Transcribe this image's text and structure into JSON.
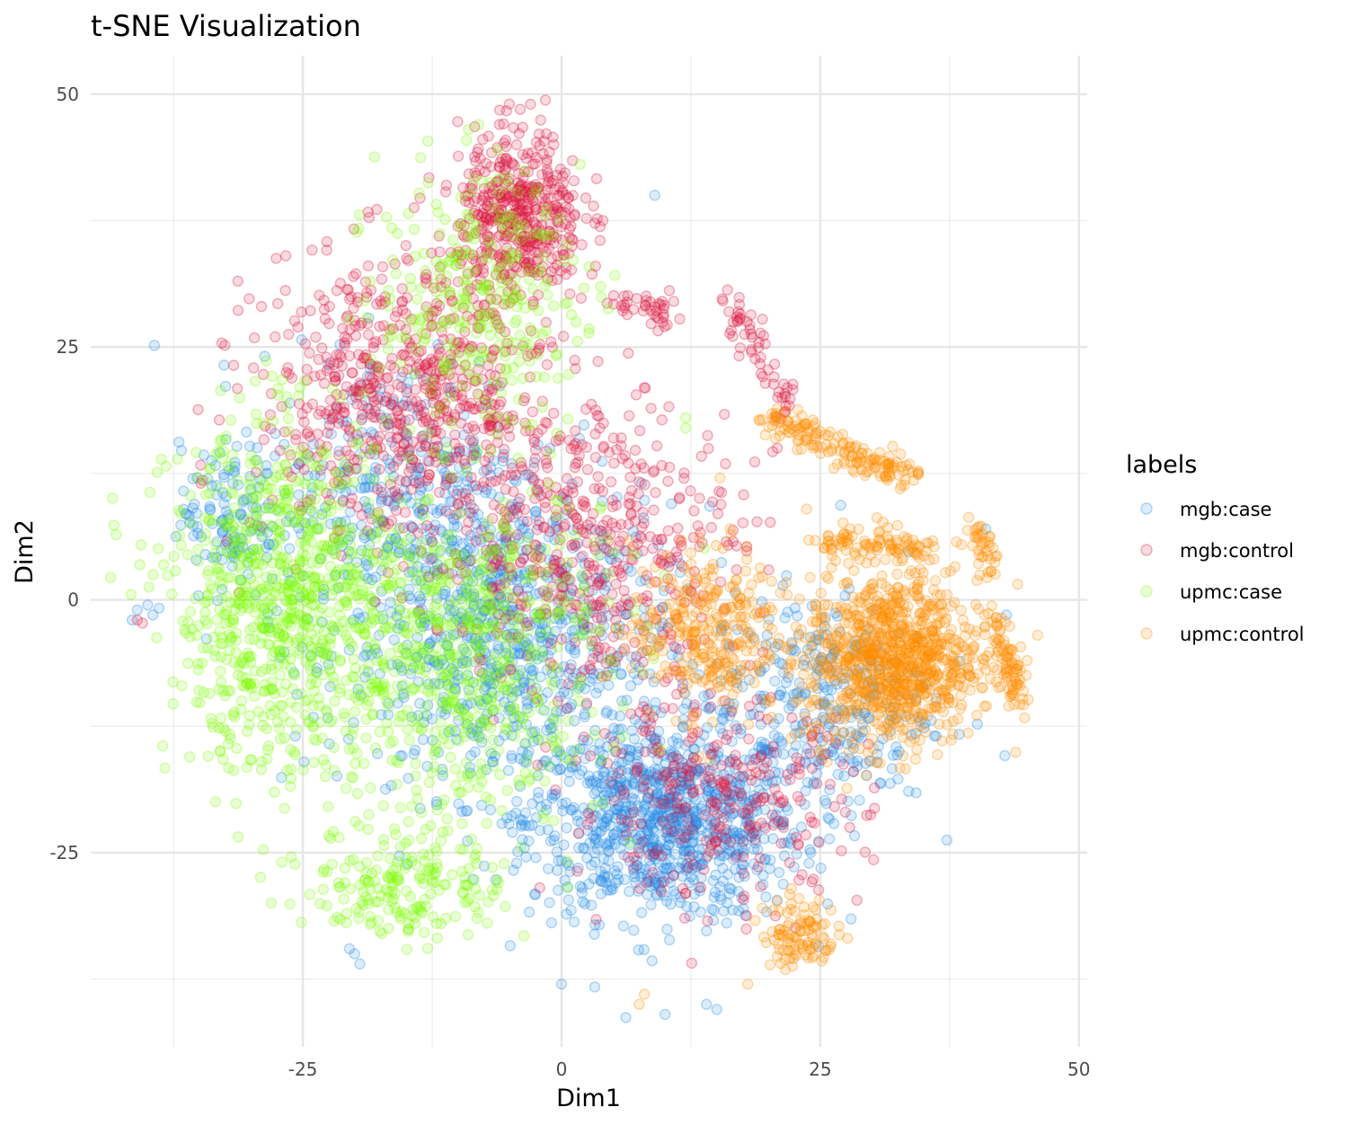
{
  "chart_data": {
    "type": "scatter",
    "title": "t-SNE Visualization",
    "xlabel": "Dim1",
    "ylabel": "Dim2",
    "xlim": [
      -45.5,
      50.8
    ],
    "ylim": [
      -44.2,
      53.8
    ],
    "x_ticks": [
      -25,
      0,
      25,
      50
    ],
    "y_ticks": [
      50,
      25,
      0,
      -25
    ],
    "x_tick_labels": [
      "-25",
      "0",
      "25",
      "50"
    ],
    "y_tick_labels": [
      "50",
      "25",
      "0",
      "-25"
    ],
    "grid": true,
    "legend": {
      "title": "labels",
      "placement": "right",
      "entries": [
        "mgb:case",
        "mgb:control",
        "upmc:case",
        "upmc:control"
      ]
    },
    "series": [
      {
        "name": "mgb:case",
        "color": "#1E88E5",
        "clusters": [
          {
            "x": 10,
            "y": -22,
            "sx": 11,
            "sy": 8,
            "n": 900
          },
          {
            "x": -5,
            "y": -5,
            "sx": 13,
            "sy": 12,
            "n": 700
          },
          {
            "x": -15,
            "y": 10,
            "sx": 12,
            "sy": 12,
            "n": 400
          },
          {
            "x": 25,
            "y": -10,
            "sx": 9,
            "sy": 9,
            "n": 300
          },
          {
            "x": -32,
            "y": 8,
            "sx": 4,
            "sy": 6,
            "n": 120
          }
        ],
        "points": [
          [
            -41,
            -1
          ],
          [
            -41.5,
            -2
          ],
          [
            -40,
            -0.5
          ],
          [
            -39.5,
            -1.5
          ],
          [
            -20,
            -35
          ],
          [
            -19.5,
            -36
          ],
          [
            -20.5,
            -34.5
          ],
          [
            9,
            40
          ],
          [
            10,
            -41
          ],
          [
            14,
            -40
          ],
          [
            15,
            -40.5
          ],
          [
            0,
            -38
          ],
          [
            43,
            -1.5
          ],
          [
            41,
            7
          ]
        ]
      },
      {
        "name": "mgb:control",
        "color": "#DC143C",
        "clusters": [
          {
            "x": -4,
            "y": 38,
            "sx": 5,
            "sy": 7,
            "n": 450
          },
          {
            "x": -15,
            "y": 20,
            "sx": 12,
            "sy": 12,
            "n": 700
          },
          {
            "x": 3,
            "y": 5,
            "sx": 12,
            "sy": 12,
            "n": 500
          },
          {
            "x": 15,
            "y": -20,
            "sx": 12,
            "sy": 8,
            "n": 300
          }
        ],
        "lines": [
          {
            "x1": 16,
            "y1": 30,
            "x2": 22,
            "y2": 19,
            "n": 60
          },
          {
            "x1": 5,
            "y1": 30,
            "x2": 11,
            "y2": 28,
            "n": 40
          }
        ],
        "points": [
          [
            -3,
            49
          ],
          [
            -4,
            48.5
          ],
          [
            -6,
            47
          ],
          [
            -41,
            -2
          ],
          [
            -40.5,
            -2.3
          ],
          [
            -29,
            29
          ],
          [
            4,
            37.5
          ]
        ]
      },
      {
        "name": "upmc:case",
        "color": "#7CFC00",
        "clusters": [
          {
            "x": -27,
            "y": 0,
            "sx": 9,
            "sy": 14,
            "n": 800
          },
          {
            "x": -10,
            "y": -5,
            "sx": 12,
            "sy": 14,
            "n": 700
          },
          {
            "x": -8,
            "y": 30,
            "sx": 8,
            "sy": 10,
            "n": 300
          },
          {
            "x": -15,
            "y": -28,
            "sx": 8,
            "sy": 5,
            "n": 200
          }
        ],
        "points": [
          [
            -8,
            47
          ],
          [
            -9,
            46.5
          ],
          [
            12,
            18
          ],
          [
            12,
            17
          ],
          [
            -33,
            -15
          ],
          [
            -29,
            -16
          ]
        ]
      },
      {
        "name": "upmc:control",
        "color": "#FF8C00",
        "clusters": [
          {
            "x": 32,
            "y": -6,
            "sx": 7,
            "sy": 7,
            "n": 900
          },
          {
            "x": 14,
            "y": -3,
            "sx": 6,
            "sy": 7,
            "n": 300
          },
          {
            "x": 23,
            "y": -33,
            "sx": 3,
            "sy": 3,
            "n": 100
          }
        ],
        "lines": [
          {
            "x1": 20,
            "y1": 18,
            "x2": 34,
            "y2": 12,
            "n": 160
          },
          {
            "x1": 25,
            "y1": 6,
            "x2": 36,
            "y2": 5,
            "n": 100
          },
          {
            "x1": 42,
            "y1": -2,
            "x2": 44,
            "y2": -10,
            "n": 80
          },
          {
            "x1": 40,
            "y1": 7,
            "x2": 42,
            "y2": 3,
            "n": 40
          }
        ],
        "points": [
          [
            46,
            -3.5
          ],
          [
            45,
            -6
          ],
          [
            8,
            -39
          ],
          [
            7.5,
            -40
          ],
          [
            18,
            -38
          ]
        ]
      }
    ]
  }
}
